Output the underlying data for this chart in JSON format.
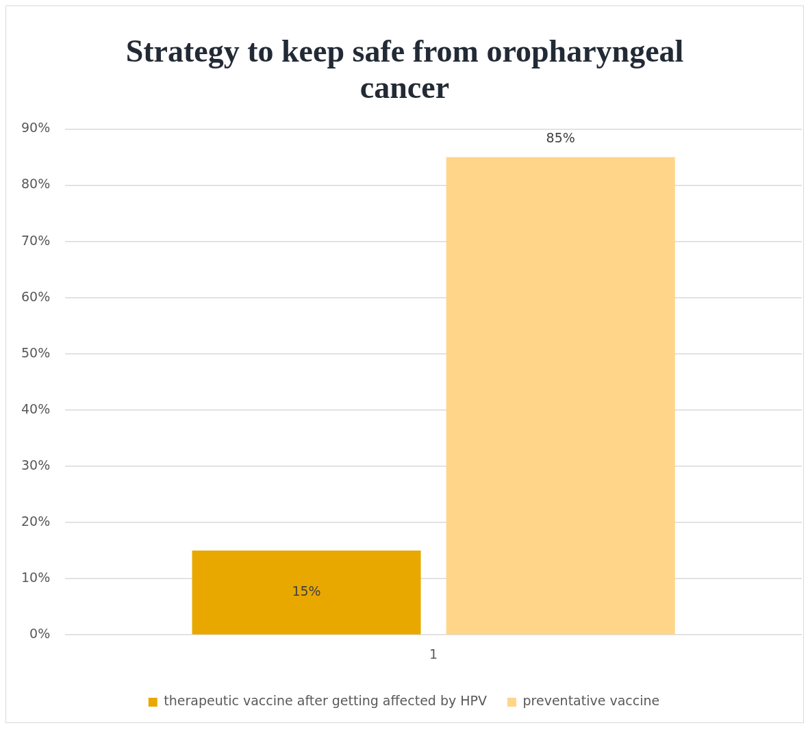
{
  "chart_data": {
    "type": "bar",
    "title": "Strategy to keep safe from oropharyngeal cancer",
    "categories": [
      "1"
    ],
    "series": [
      {
        "name": "therapeutic vaccine after getting affected by HPV",
        "color": "#e8a800",
        "values": [
          15
        ],
        "value_labels": [
          "15%"
        ]
      },
      {
        "name": "preventative vaccine",
        "color": "#ffd58a",
        "values": [
          85
        ],
        "value_labels": [
          "85%"
        ]
      }
    ],
    "ylim": [
      0,
      90
    ],
    "yticks": [
      {
        "value": 0,
        "label": "0%"
      },
      {
        "value": 10,
        "label": "10%"
      },
      {
        "value": 20,
        "label": "20%"
      },
      {
        "value": 30,
        "label": "30%"
      },
      {
        "value": 40,
        "label": "40%"
      },
      {
        "value": 50,
        "label": "50%"
      },
      {
        "value": 60,
        "label": "60%"
      },
      {
        "value": 70,
        "label": "70%"
      },
      {
        "value": 80,
        "label": "80%"
      },
      {
        "value": 90,
        "label": "90%"
      }
    ],
    "grid": "y",
    "legend": "bottom"
  }
}
